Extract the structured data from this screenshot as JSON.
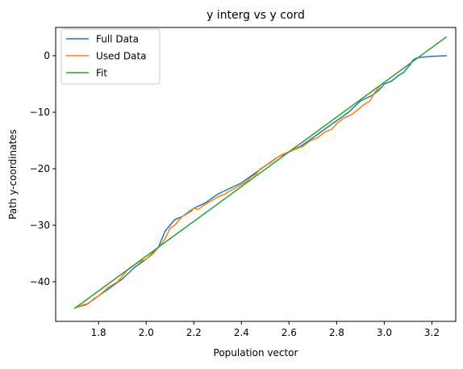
{
  "chart_data": {
    "type": "line",
    "title": "y interg vs y cord",
    "xlabel": "Population vector",
    "ylabel": "Path y-coordinates",
    "xlim": [
      1.62,
      3.3
    ],
    "ylim": [
      -47,
      5
    ],
    "xticks": [
      1.8,
      2.0,
      2.2,
      2.4,
      2.6,
      2.8,
      3.0,
      3.2
    ],
    "xtick_labels": [
      "1.8",
      "2.0",
      "2.2",
      "2.4",
      "2.6",
      "2.8",
      "3.0",
      "3.2"
    ],
    "yticks": [
      -40,
      -30,
      -20,
      -10,
      0
    ],
    "ytick_labels": [
      "−40",
      "−30",
      "−20",
      "−10",
      "0"
    ],
    "grid": false,
    "legend_position": "top-left",
    "series": [
      {
        "name": "Full Data",
        "color": "#1f77b4",
        "x": [
          1.71,
          1.75,
          1.8,
          1.85,
          1.9,
          1.95,
          2.0,
          2.05,
          2.08,
          2.12,
          2.15,
          2.2,
          2.25,
          2.3,
          2.35,
          2.4,
          2.45,
          2.5,
          2.55,
          2.6,
          2.65,
          2.7,
          2.75,
          2.8,
          2.85,
          2.9,
          2.95,
          2.98,
          3.0,
          3.03,
          3.06,
          3.08,
          3.1,
          3.11,
          3.12,
          3.13,
          3.15,
          3.2,
          3.26
        ],
        "y": [
          -44.5,
          -44.0,
          -42.5,
          -41.0,
          -39.5,
          -37.5,
          -36.0,
          -34.0,
          -31.0,
          -29.0,
          -28.5,
          -27.0,
          -26.0,
          -24.5,
          -23.5,
          -22.5,
          -21.0,
          -19.5,
          -18.0,
          -17.0,
          -16.0,
          -14.5,
          -13.0,
          -11.5,
          -10.0,
          -8.0,
          -7.0,
          -6.0,
          -5.0,
          -4.5,
          -3.5,
          -3.0,
          -2.0,
          -1.5,
          -0.8,
          -0.5,
          -0.3,
          -0.1,
          0.0
        ]
      },
      {
        "name": "Used Data",
        "color": "#ff7f0e",
        "x": [
          1.71,
          1.74,
          1.76,
          1.78,
          1.8,
          1.82,
          1.84,
          1.86,
          1.88,
          1.9,
          1.92,
          1.95,
          1.97,
          2.0,
          2.03,
          2.05,
          2.07,
          2.09,
          2.1,
          2.12,
          2.14,
          2.15,
          2.17,
          2.19,
          2.2,
          2.22,
          2.24,
          2.26,
          2.28,
          2.3,
          2.33,
          2.35,
          2.37,
          2.4,
          2.42,
          2.44,
          2.46,
          2.48,
          2.5,
          2.52,
          2.55,
          2.57,
          2.6,
          2.63,
          2.66,
          2.69,
          2.72,
          2.75,
          2.78,
          2.8,
          2.83,
          2.86,
          2.89,
          2.92,
          2.94,
          2.96,
          2.98
        ],
        "y": [
          -44.5,
          -44.0,
          -43.8,
          -43.0,
          -42.5,
          -41.8,
          -41.0,
          -40.5,
          -40.0,
          -39.0,
          -38.0,
          -37.0,
          -36.5,
          -36.0,
          -35.0,
          -34.0,
          -33.0,
          -31.5,
          -30.5,
          -30.0,
          -29.0,
          -28.5,
          -28.0,
          -27.5,
          -27.0,
          -27.2,
          -26.5,
          -26.0,
          -25.5,
          -25.0,
          -24.5,
          -24.0,
          -23.5,
          -22.8,
          -22.3,
          -21.5,
          -21.0,
          -20.0,
          -19.5,
          -19.0,
          -18.0,
          -17.5,
          -17.0,
          -16.5,
          -16.0,
          -15.0,
          -14.5,
          -13.5,
          -13.0,
          -12.0,
          -11.0,
          -10.5,
          -9.5,
          -8.5,
          -8.0,
          -6.5,
          -5.5
        ]
      },
      {
        "name": "Fit",
        "color": "#2ca02c",
        "x": [
          1.7,
          3.26
        ],
        "y": [
          -44.7,
          3.3
        ]
      }
    ]
  }
}
